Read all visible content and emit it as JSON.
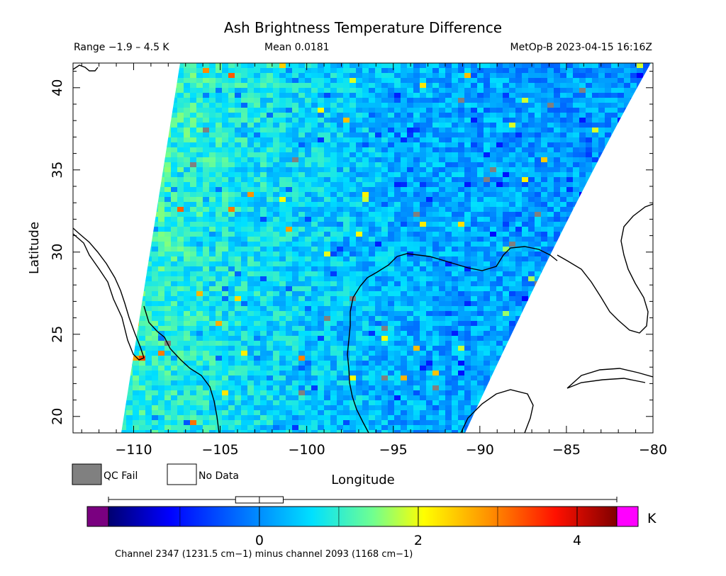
{
  "chart_data": {
    "type": "heatmap",
    "title": "Ash Brightness Temperature Difference",
    "range_text": "Range −1.9 – 4.5 K",
    "mean_text": "Mean 0.0181",
    "source_text": "MetOp-B 2023-04-15 16:16Z",
    "xlabel": "Longitude",
    "ylabel": "Latitude",
    "xlim": [
      -113.5,
      -80
    ],
    "ylim": [
      19,
      41.5
    ],
    "x_ticks": [
      -110,
      -105,
      -100,
      -95,
      -90,
      -85,
      -80
    ],
    "x_tick_labels": [
      "−110",
      "−105",
      "−100",
      "−95",
      "−90",
      "−85",
      "−80"
    ],
    "y_ticks": [
      20,
      25,
      30,
      35,
      40
    ],
    "y_tick_labels": [
      "20",
      "25",
      "30",
      "35",
      "40"
    ],
    "colorbar": {
      "min": -1.9,
      "max": 4.5,
      "unit": "K",
      "ticks": [
        0,
        2,
        4
      ],
      "tick_labels": [
        "0",
        "2",
        "4"
      ],
      "below_color": "#7a0080",
      "above_color": "#ff00ff",
      "caption": "Channel 2347 (1231.5 cm−1) minus channel 2093 (1168 cm−1)"
    },
    "boxplot_whiskers": [
      -1.9,
      4.5
    ],
    "boxplot_box": [
      -0.3,
      0.3
    ],
    "boxplot_median": 0.0,
    "legend": [
      {
        "label": "QC Fail",
        "color": "#808080"
      },
      {
        "label": "No Data",
        "color": "#ffffff"
      }
    ]
  }
}
